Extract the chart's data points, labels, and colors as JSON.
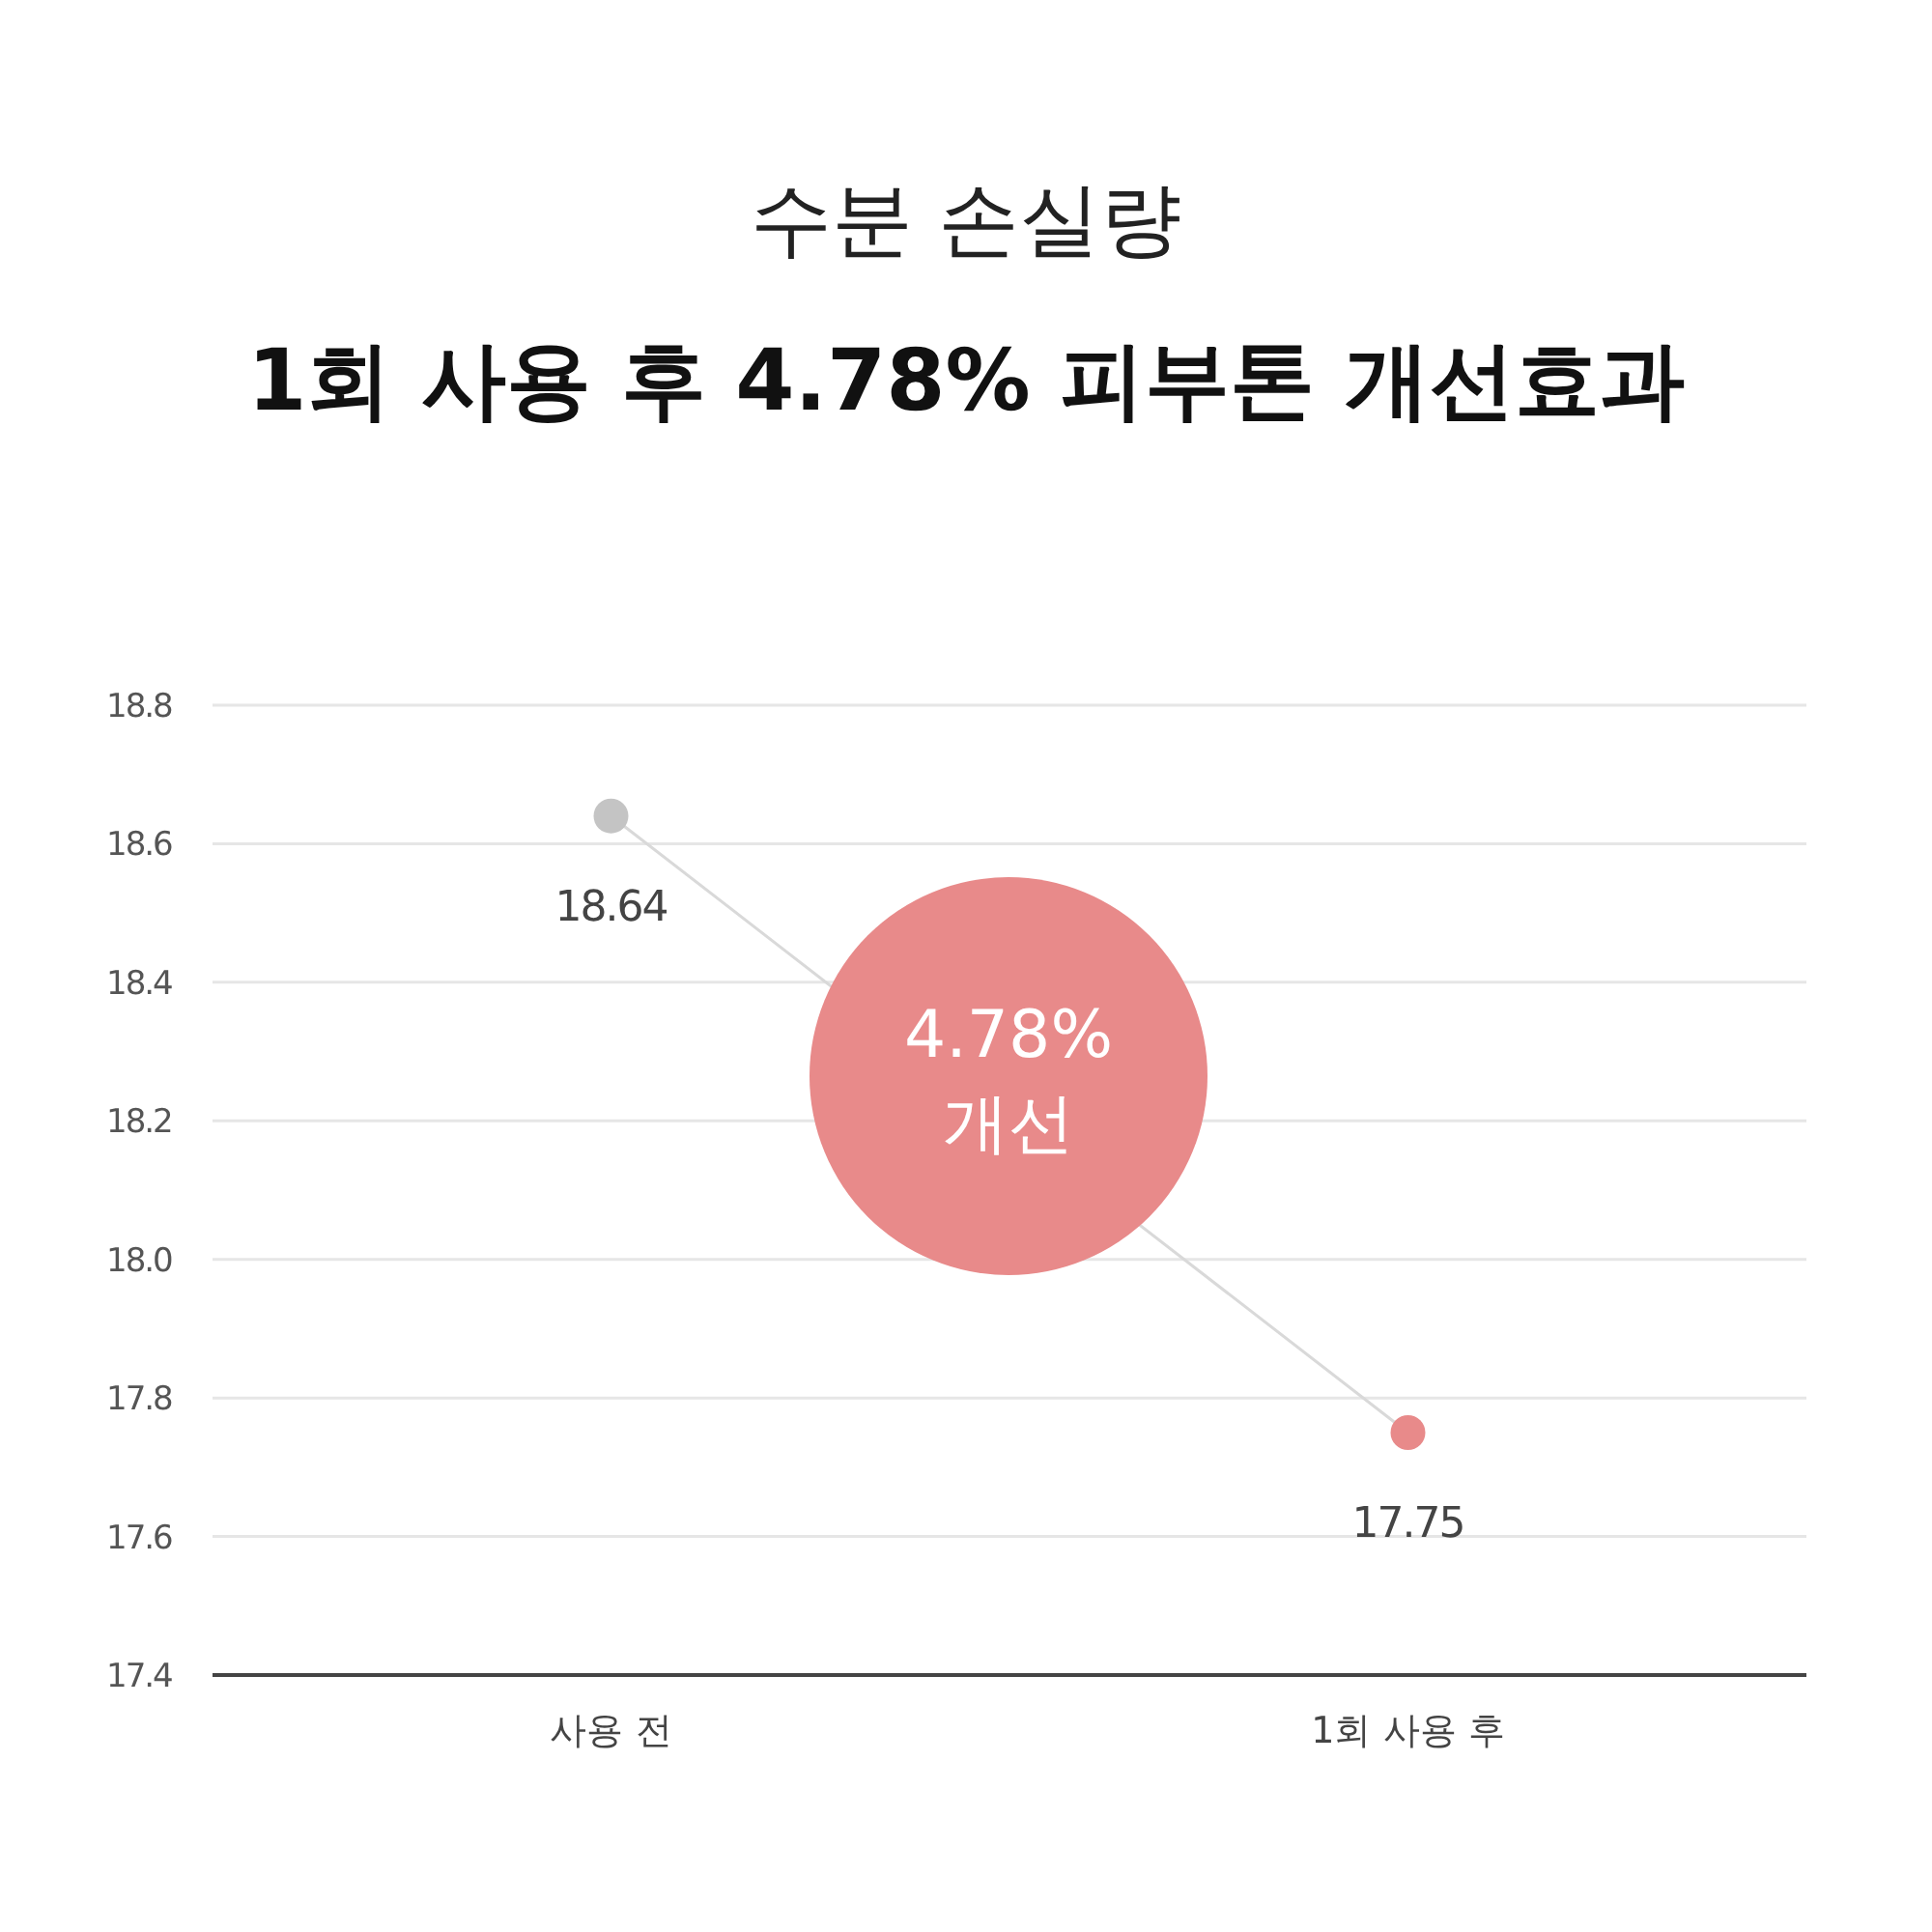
{
  "chart_data": {
    "type": "line",
    "title": "수분 손실량",
    "subtitle": "1회 사용 후 4.78% 피부톤 개선효과",
    "categories": [
      "사용 전",
      "1회 사용 후"
    ],
    "series": [
      {
        "values": [
          18.64,
          17.75
        ],
        "color": "#d9d9d9",
        "colors": [
          "#c4c4c4",
          "#e88a8a"
        ]
      }
    ],
    "data_labels": true,
    "marker": "circle",
    "line_style": "solid",
    "ylim": [
      17.4,
      18.8
    ],
    "yticks": [
      17.4,
      17.6,
      17.8,
      {
        "value": 18,
        "label": "18.0"
      },
      18.2,
      18.4,
      18.6,
      18.8
    ],
    "grid": "y",
    "annotations": [
      "4.78%\n개선"
    ]
  }
}
